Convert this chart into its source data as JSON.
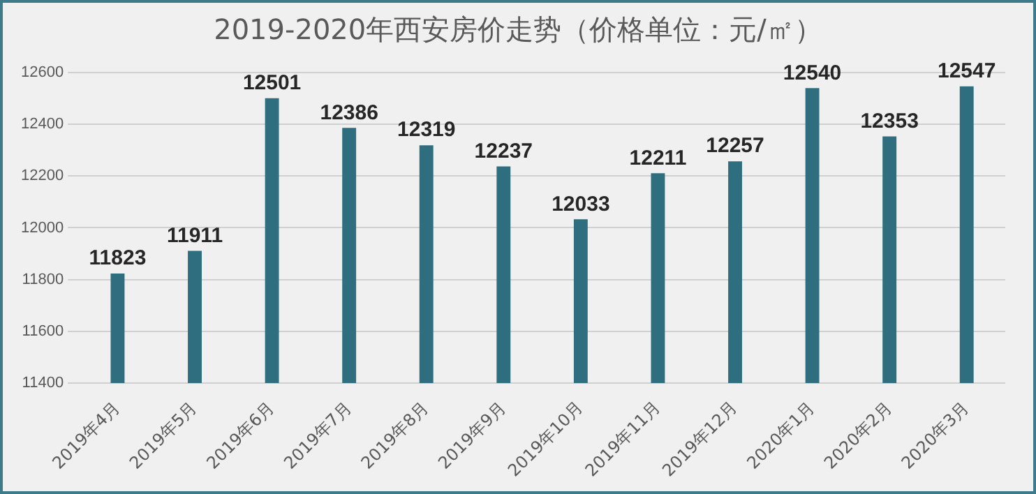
{
  "chart_data": {
    "type": "bar",
    "title": "2019-2020年西安房价走势（价格单位：元/㎡）",
    "categories": [
      "2019年4月",
      "2019年5月",
      "2019年6月",
      "2019年7月",
      "2019年8月",
      "2019年9月",
      "2019年10月",
      "2019年11月",
      "2019年12月",
      "2020年1月",
      "2020年2月",
      "2020年3月"
    ],
    "values": [
      11823,
      11911,
      12501,
      12386,
      12319,
      12237,
      12033,
      12211,
      12257,
      12540,
      12353,
      12547
    ],
    "color": "#2f6e7e",
    "ylim": [
      11400,
      12600
    ],
    "yticks": [
      11400,
      11600,
      11800,
      12000,
      12200,
      12400,
      12600
    ],
    "grid": "y",
    "data_labels": true
  }
}
